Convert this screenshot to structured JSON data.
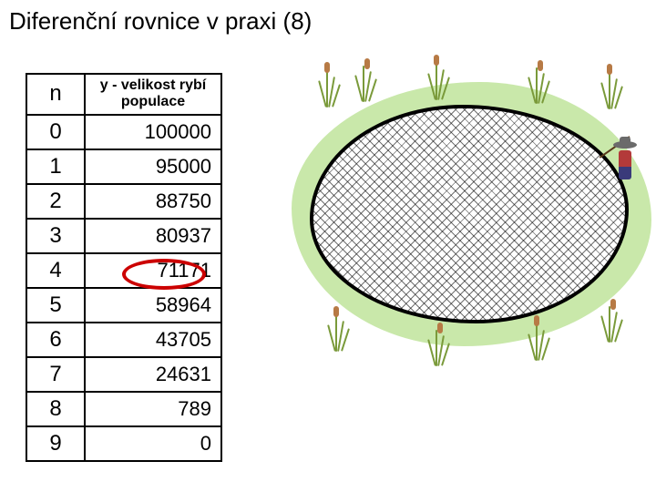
{
  "title": "Diferenční rovnice v praxi (8)",
  "table": {
    "header_n": "n",
    "header_y": "y - velikost rybí populace",
    "rows": [
      {
        "n": "0",
        "y": "100000"
      },
      {
        "n": "1",
        "y": "95000"
      },
      {
        "n": "2",
        "y": "88750"
      },
      {
        "n": "3",
        "y": "80937"
      },
      {
        "n": "4",
        "y": "71171"
      },
      {
        "n": "5",
        "y": "58964"
      },
      {
        "n": "6",
        "y": "43705"
      },
      {
        "n": "7",
        "y": "24631"
      },
      {
        "n": "8",
        "y": "789"
      },
      {
        "n": "9",
        "y": "0"
      }
    ],
    "circled_row_index": 4,
    "circle_color": "#cc0000"
  },
  "illustration": {
    "grass_color": "#c9e8aa",
    "pond_hatch_color": "#000000",
    "pond_fill": "#ffffff",
    "reed_stem_color": "#7a9a3a",
    "reed_head_color": "#b77a45",
    "fisher_hat": "#6b6b6b",
    "fisher_body": "#b33a3a",
    "fisher_legs": "#3a3a7a"
  }
}
